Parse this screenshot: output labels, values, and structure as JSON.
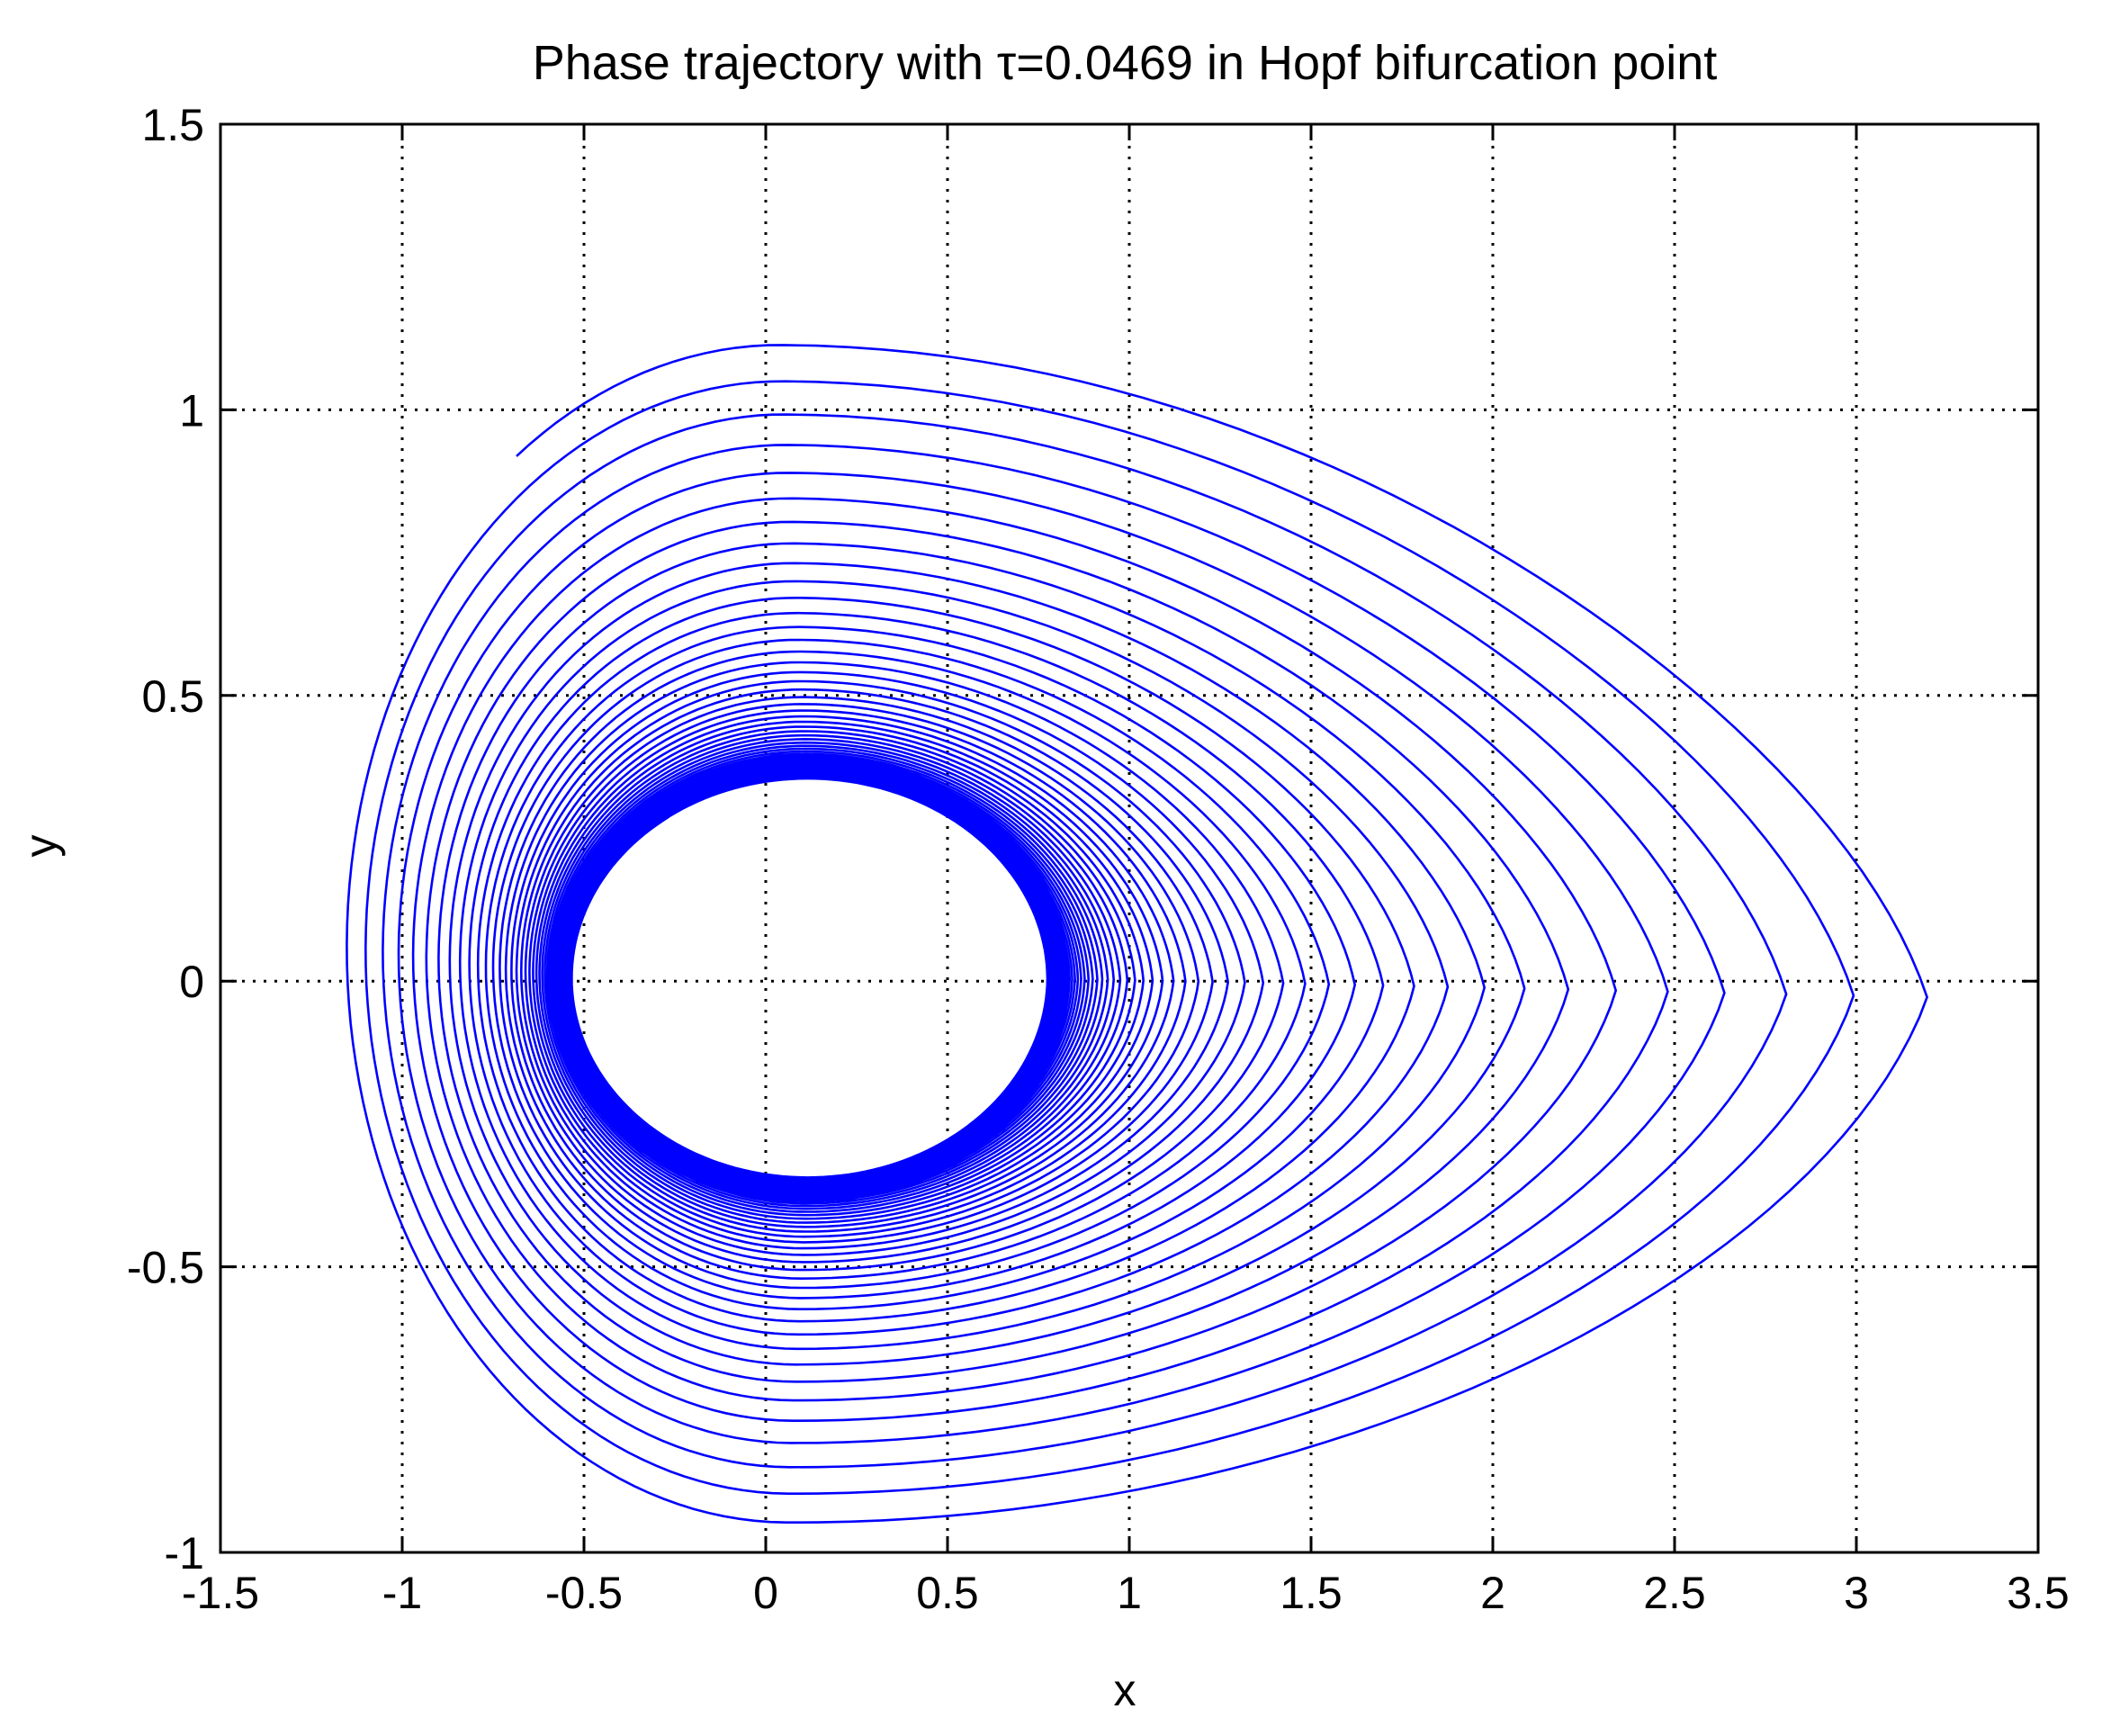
{
  "chart_data": {
    "type": "line",
    "title": "Phase trajectory with τ=0.0469 in Hopf bifurcation point",
    "xlabel": "x",
    "ylabel": "y",
    "xlim": [
      -1.5,
      3.5
    ],
    "ylim": [
      -1,
      1.5
    ],
    "xticks": [
      -1.5,
      -1,
      -0.5,
      0,
      0.5,
      1,
      1.5,
      2,
      2.5,
      3,
      3.5
    ],
    "yticks": [
      -1,
      -0.5,
      0,
      0.5,
      1,
      1.5
    ],
    "xtick_labels": [
      "-1.5",
      "-1",
      "-0.5",
      "0",
      "0.5",
      "1",
      "1.5",
      "2",
      "2.5",
      "3",
      "3.5"
    ],
    "ytick_labels": [
      "-1",
      "-0.5",
      "0",
      "0.5",
      "1",
      "1.5"
    ],
    "grid": true,
    "line_color": "#0000ff",
    "series": [
      {
        "description_values": "spiral converging from (-1, 1) to a limit cycle of x in [-0.53, 0.76], y in [-0.34, 0.35]",
        "start": [
          -1.0,
          1.0
        ],
        "outer_extent": {
          "x_min": -1.3,
          "x_max": 3.37,
          "y_min": -0.98,
          "y_max": 1.12
        },
        "limit_cycle": {
          "x_min": -0.53,
          "x_max": 0.76,
          "y_min": -0.34,
          "y_max": 0.35
        },
        "turns": 60
      }
    ]
  }
}
